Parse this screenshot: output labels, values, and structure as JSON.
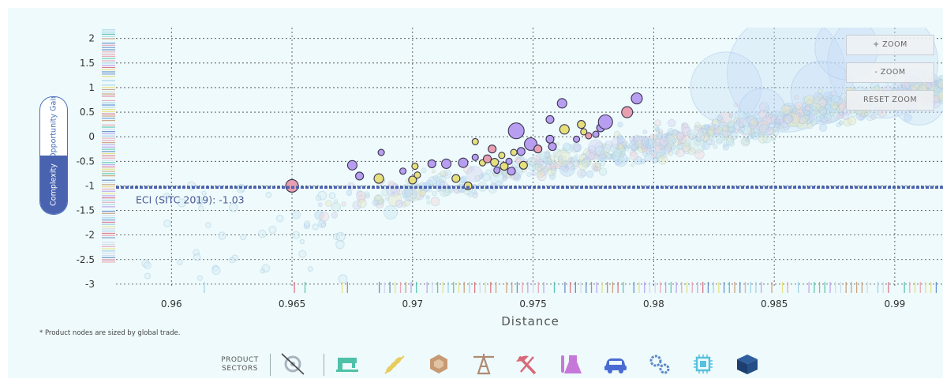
{
  "controls": {
    "toggle": [
      "Opportunity Gain",
      "Complexity"
    ],
    "zoom_in": "+ ZOOM",
    "zoom_out": "- ZOOM",
    "reset_zoom": "RESET ZOOM"
  },
  "footnote": "* Product nodes are sized by global trade.",
  "sectors": {
    "label_line1": "PRODUCT",
    "label_line2": "SECTORS",
    "icons": [
      "services-icon-disabled",
      "textiles-icon",
      "agriculture-icon",
      "stone-icon",
      "minerals-icon",
      "metals-icon",
      "chemicals-icon",
      "vehicles-icon",
      "machinery-icon",
      "electronics-icon",
      "other-icon"
    ]
  },
  "colors": {
    "reference_line": "#4a63b0",
    "highlight_purple": "#b79ef0",
    "highlight_yellow": "#e5e07a",
    "highlight_pink": "#e8a0b0",
    "background_dot": "#c9e6f2"
  },
  "chart_data": {
    "type": "scatter",
    "xlabel": "Distance",
    "ylabel": "",
    "xlim": [
      0.9577,
      0.992
    ],
    "ylim": [
      -3.05,
      2.22
    ],
    "xticks": [
      "0.96",
      "0.965",
      "0.97",
      "0.975",
      "0.98",
      "0.985",
      "0.99"
    ],
    "yticks": [
      "2",
      "1.5",
      "1",
      "0.5",
      "0",
      "-0.5",
      "-1",
      "-1.5",
      "-2",
      "-2.5",
      "-3"
    ],
    "grid": true,
    "reference_line": {
      "y": -1.03,
      "label": "ECI (SITC 2019): -1.03"
    },
    "highlighted_points": [
      {
        "x": 0.965,
        "y": -1.0,
        "c": "pink",
        "r": 8
      },
      {
        "x": 0.9675,
        "y": -0.58,
        "c": "purple",
        "r": 6
      },
      {
        "x": 0.9678,
        "y": -0.8,
        "c": "purple",
        "r": 5
      },
      {
        "x": 0.9687,
        "y": -0.32,
        "c": "purple",
        "r": 4
      },
      {
        "x": 0.9686,
        "y": -0.85,
        "c": "yellow",
        "r": 6
      },
      {
        "x": 0.9696,
        "y": -0.7,
        "c": "purple",
        "r": 4
      },
      {
        "x": 0.97,
        "y": -0.88,
        "c": "yellow",
        "r": 5
      },
      {
        "x": 0.9701,
        "y": -0.6,
        "c": "yellow",
        "r": 4
      },
      {
        "x": 0.9702,
        "y": -0.78,
        "c": "yellow",
        "r": 4
      },
      {
        "x": 0.9708,
        "y": -0.55,
        "c": "purple",
        "r": 5
      },
      {
        "x": 0.9714,
        "y": -0.55,
        "c": "purple",
        "r": 6
      },
      {
        "x": 0.9718,
        "y": -0.85,
        "c": "yellow",
        "r": 5
      },
      {
        "x": 0.9721,
        "y": -0.53,
        "c": "purple",
        "r": 6
      },
      {
        "x": 0.9723,
        "y": -1.0,
        "c": "yellow",
        "r": 5
      },
      {
        "x": 0.9726,
        "y": -0.1,
        "c": "yellow",
        "r": 4
      },
      {
        "x": 0.9726,
        "y": -0.42,
        "c": "purple",
        "r": 4
      },
      {
        "x": 0.9729,
        "y": -0.53,
        "c": "yellow",
        "r": 4
      },
      {
        "x": 0.9731,
        "y": -0.45,
        "c": "pink",
        "r": 5
      },
      {
        "x": 0.9733,
        "y": -0.25,
        "c": "pink",
        "r": 5
      },
      {
        "x": 0.9734,
        "y": -0.52,
        "c": "yellow",
        "r": 5
      },
      {
        "x": 0.9735,
        "y": -0.68,
        "c": "purple",
        "r": 4
      },
      {
        "x": 0.9737,
        "y": -0.38,
        "c": "yellow",
        "r": 4
      },
      {
        "x": 0.9738,
        "y": -0.6,
        "c": "yellow",
        "r": 5
      },
      {
        "x": 0.974,
        "y": -0.5,
        "c": "purple",
        "r": 4
      },
      {
        "x": 0.9741,
        "y": -0.7,
        "c": "purple",
        "r": 5
      },
      {
        "x": 0.9742,
        "y": -0.32,
        "c": "yellow",
        "r": 4
      },
      {
        "x": 0.9743,
        "y": 0.12,
        "c": "purple",
        "r": 10
      },
      {
        "x": 0.9745,
        "y": -0.3,
        "c": "purple",
        "r": 5
      },
      {
        "x": 0.9746,
        "y": -0.58,
        "c": "yellow",
        "r": 5
      },
      {
        "x": 0.9749,
        "y": -0.15,
        "c": "purple",
        "r": 8
      },
      {
        "x": 0.9752,
        "y": -0.25,
        "c": "pink",
        "r": 5
      },
      {
        "x": 0.9757,
        "y": 0.35,
        "c": "purple",
        "r": 5
      },
      {
        "x": 0.9757,
        "y": -0.05,
        "c": "purple",
        "r": 5
      },
      {
        "x": 0.9758,
        "y": -0.2,
        "c": "purple",
        "r": 5
      },
      {
        "x": 0.9762,
        "y": 0.68,
        "c": "purple",
        "r": 6
      },
      {
        "x": 0.9763,
        "y": 0.15,
        "c": "yellow",
        "r": 6
      },
      {
        "x": 0.9768,
        "y": -0.05,
        "c": "purple",
        "r": 4
      },
      {
        "x": 0.977,
        "y": 0.25,
        "c": "yellow",
        "r": 5
      },
      {
        "x": 0.9771,
        "y": 0.1,
        "c": "yellow",
        "r": 4
      },
      {
        "x": 0.9773,
        "y": 0.02,
        "c": "pink",
        "r": 4
      },
      {
        "x": 0.9776,
        "y": 0.05,
        "c": "purple",
        "r": 4
      },
      {
        "x": 0.9778,
        "y": 0.18,
        "c": "purple",
        "r": 5
      },
      {
        "x": 0.978,
        "y": 0.3,
        "c": "purple",
        "r": 9
      },
      {
        "x": 0.9789,
        "y": 0.5,
        "c": "pink",
        "r": 7
      },
      {
        "x": 0.9793,
        "y": 0.78,
        "c": "purple",
        "r": 7
      }
    ]
  }
}
